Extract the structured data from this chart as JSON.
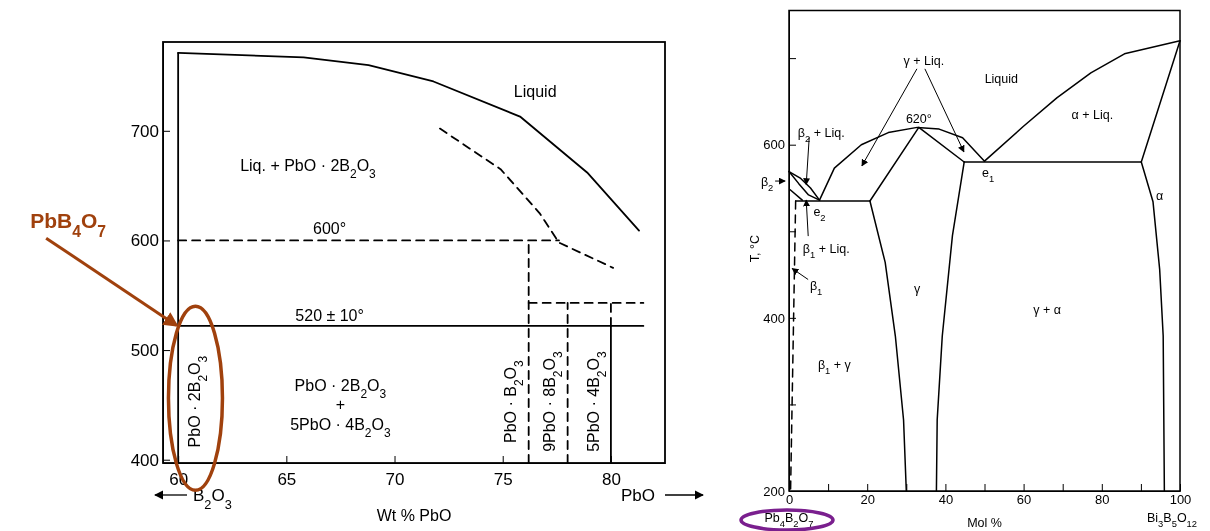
{
  "chart_data": [
    {
      "type": "line",
      "xlabel": "Wt % PbO",
      "xlim": [
        59.3,
        82.5
      ],
      "ylim": [
        397,
        781
      ],
      "xticks": [
        60,
        65,
        70,
        75,
        80
      ],
      "yticks": [
        400,
        500,
        600,
        700
      ],
      "series": [
        {
          "color": "#000000",
          "x": [
            60,
            60
          ],
          "values": [
            397,
            771
          ]
        },
        {
          "color": "#000000",
          "x": [
            60,
            65.8,
            68.8,
            71.8,
            75.8,
            78.9,
            81.3
          ],
          "values": [
            771,
            767,
            760,
            745,
            713,
            662,
            609
          ]
        },
        {
          "color": "#000000",
          "line_style": "dashed",
          "x": [
            72.1,
            74.9,
            76.7,
            77.6,
            80.1
          ],
          "values": [
            702,
            665,
            625,
            598,
            575
          ]
        },
        {
          "color": "#000000",
          "line_style": "dashed",
          "x": [
            60,
            77.6
          ],
          "values": [
            600,
            600
          ]
        },
        {
          "color": "#000000",
          "line_style": "dashed",
          "x": [
            76.2,
            76.2
          ],
          "values": [
            397,
            600
          ]
        },
        {
          "color": "#000000",
          "x": [
            60,
            81.5
          ],
          "values": [
            522,
            522
          ]
        },
        {
          "color": "#000000",
          "line_style": "dashed",
          "x": [
            76.2,
            81.5
          ],
          "values": [
            543,
            543
          ]
        },
        {
          "color": "#000000",
          "line_style": "dashed",
          "x": [
            78,
            78
          ],
          "values": [
            397,
            543
          ]
        },
        {
          "color": "#000000",
          "x": [
            80,
            80
          ],
          "values": [
            397,
            522
          ]
        },
        {
          "color": "#000000",
          "line_style": "dashed",
          "x": [
            80,
            80
          ],
          "values": [
            522,
            543
          ]
        }
      ],
      "annotations": [
        "Liquid",
        "Liq. + PbO · 2B$_{2}$O$_{3}$",
        "600°",
        "520 ± 10°",
        "PbO · 2B$_{2}$O$_{3}$",
        "PbO · 2B$_{2}$O$_{3}$",
        "+",
        "5PbO · 4B$_{2}$O$_{3}$",
        "PbO · B$_{2}$O$_{3}$",
        "9PbO · 8B$_{2}$O$_{3}$",
        "5PbO · 4B$_{2}$O$_{3}$",
        "B$_{2}$O$_{3}$",
        "PbO",
        {
          "text": "PbB$_{4}$O$_{7}$",
          "x": 60,
          "y": 520
        }
      ]
    },
    {
      "type": "line",
      "xlabel": "Mol %",
      "ylabel": "T, °C",
      "xlim": [
        0,
        100
      ],
      "ylim": [
        200,
        755
      ],
      "xticks": [
        0,
        {
          "value": 10,
          "label": null
        },
        20,
        {
          "value": 30,
          "label": null
        },
        40,
        {
          "value": 50,
          "label": null
        },
        60,
        {
          "value": 70,
          "label": null
        },
        80,
        {
          "value": 90,
          "label": null
        },
        100
      ],
      "yticks": [
        200,
        {
          "value": 300,
          "label": null
        },
        400,
        {
          "value": 500,
          "label": null
        },
        600,
        {
          "value": 700,
          "label": null
        }
      ],
      "series": [
        {
          "color": "#000000",
          "x": [
            7.8,
            11.6,
            18.5,
            25.4,
            32.8,
            38.4,
            44.4,
            50
          ],
          "values": [
            536,
            573,
            600,
            614,
            620,
            618,
            608,
            581
          ]
        },
        {
          "color": "#000000",
          "x": [
            20.7,
            33.2,
            44.8
          ],
          "values": [
            535,
            620,
            580
          ]
        },
        {
          "color": "#000000",
          "x": [
            1.7,
            20.7
          ],
          "values": [
            535,
            535
          ]
        },
        {
          "color": "#000000",
          "x": [
            44.8,
            90.1
          ],
          "values": [
            580,
            580
          ]
        },
        {
          "color": "#000000",
          "x": [
            50,
            59.9,
            68.5,
            77.2,
            85.8,
            100
          ],
          "values": [
            581,
            621,
            654,
            683,
            705,
            720
          ]
        },
        {
          "color": "#000000",
          "x": [
            100,
            90.1
          ],
          "values": [
            720,
            580
          ]
        },
        {
          "color": "#000000",
          "x": [
            90.1,
            93.1,
            94.8,
            95.7,
            96
          ],
          "values": [
            580,
            534,
            456,
            379,
            200
          ]
        },
        {
          "color": "#000000",
          "x": [
            20.7,
            24.6,
            27.2,
            29.3,
            30
          ],
          "values": [
            535,
            464,
            379,
            282,
            200
          ]
        },
        {
          "color": "#000000",
          "x": [
            44.8,
            41.8,
            39.2,
            37.9,
            37.7
          ],
          "values": [
            580,
            495,
            379,
            282,
            200
          ]
        },
        {
          "color": "#000000",
          "x": [
            0,
            3,
            5.5,
            7.8
          ],
          "values": [
            569,
            561,
            550,
            536
          ]
        },
        {
          "color": "#000000",
          "x": [
            0,
            2.5,
            5,
            7.8
          ],
          "values": [
            569,
            555,
            542,
            536
          ]
        },
        {
          "color": "#000000",
          "x": [
            0.3,
            3.4
          ],
          "values": [
            548,
            536
          ]
        },
        {
          "color": "#000000",
          "line_style": "dashed",
          "x": [
            1.7,
            0.4
          ],
          "values": [
            535,
            200
          ]
        }
      ],
      "annotations": [
        "Liquid",
        "620°",
        "γ + Liq.",
        "α + Liq.",
        {
          "text": "β$_{2}$ + Liq.",
          "x": 4.4,
          "y": 554
        },
        "β$_{2}$",
        "e$_{2}$",
        {
          "text": "β$_{1}$ + Liq.",
          "x": 4.4,
          "y": 536
        },
        {
          "text": "β$_{1}$",
          "x": 0.8,
          "y": 457
        },
        "e$_{1}$",
        "α",
        "γ",
        "γ + α",
        "β$_{1}$ + γ",
        "Pb$_{4}$B$_{2}$O$_{7}$",
        "Bi$_{3}$B$_{5}$O$_{12}$"
      ]
    }
  ]
}
